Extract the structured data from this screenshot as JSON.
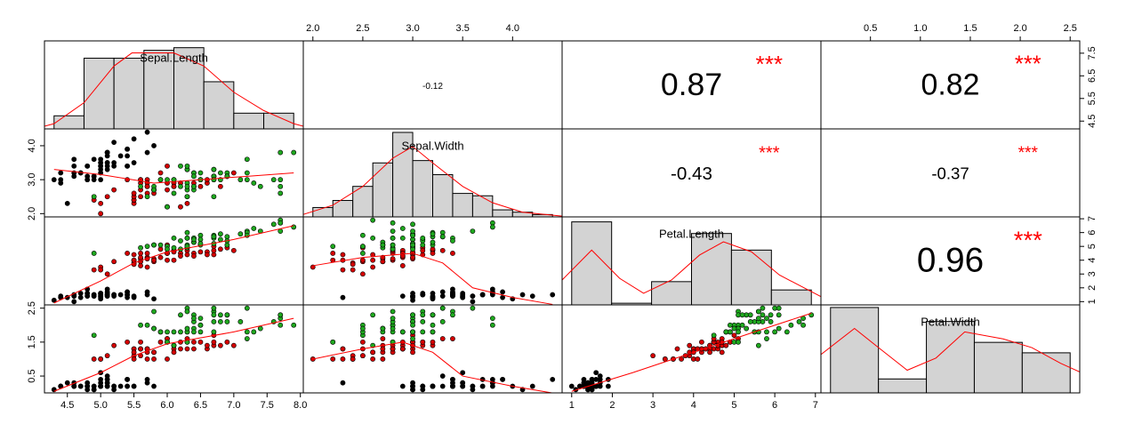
{
  "chart_data": {
    "type": "correlation-matrix",
    "variables": [
      "Sepal.Length",
      "Sepal.Width",
      "Petal.Length",
      "Petal.Width"
    ],
    "lims": [
      [
        4.156,
        8.044
      ],
      [
        1.904,
        4.496
      ],
      [
        0.764,
        7.136
      ],
      [
        0.004,
        2.596
      ]
    ],
    "xticks": [
      [
        4.5,
        {
          "value": 5,
          "label": "5.0"
        },
        5.5,
        {
          "value": 6,
          "label": "6.0"
        },
        6.5,
        {
          "value": 7,
          "label": "7.0"
        },
        7.5,
        {
          "value": 8,
          "label": "8.0"
        }
      ],
      [
        {
          "value": 2,
          "label": "2.0"
        },
        2.5,
        {
          "value": 3,
          "label": "3.0"
        },
        3.5,
        {
          "value": 4,
          "label": "4.0"
        }
      ],
      [
        1,
        2,
        3,
        4,
        5,
        6,
        7
      ],
      [
        0.5,
        {
          "value": 1,
          "label": "1.0"
        },
        1.5,
        {
          "value": 2,
          "label": "2.0"
        },
        2.5
      ]
    ],
    "yticks": [
      [
        4.5,
        5.5,
        6.5,
        7.5
      ],
      [
        {
          "value": 2,
          "label": "2.0"
        },
        {
          "value": 3,
          "label": "3.0"
        },
        {
          "value": 4,
          "label": "4.0"
        }
      ],
      [
        1,
        2,
        3,
        4,
        5,
        6,
        7
      ],
      [
        0.5,
        1.5,
        2.5
      ]
    ],
    "groups": [
      {
        "color": "#000000",
        "columns": [
          [
            5.1,
            4.9,
            4.7,
            4.6,
            5.0,
            5.4,
            4.6,
            5.0,
            4.4,
            4.9,
            5.4,
            4.8,
            4.8,
            4.3,
            5.8,
            5.7,
            5.4,
            5.1,
            5.7,
            5.1,
            5.4,
            5.1,
            4.6,
            5.1,
            4.8,
            5.0,
            5.0,
            5.2,
            5.2,
            4.7,
            4.8,
            5.4,
            5.2,
            5.5,
            4.9,
            5.0,
            5.5,
            4.9,
            4.4,
            5.1,
            5.0,
            4.5,
            4.4,
            5.0,
            5.1,
            4.8,
            5.1,
            4.6,
            5.3,
            5.0
          ],
          [
            3.5,
            3.0,
            3.2,
            3.1,
            3.6,
            3.9,
            3.4,
            3.4,
            2.9,
            3.1,
            3.7,
            3.4,
            3.0,
            3.0,
            4.0,
            4.4,
            3.9,
            3.5,
            3.8,
            3.8,
            3.4,
            3.7,
            3.6,
            3.3,
            3.4,
            3.0,
            3.4,
            3.5,
            3.4,
            3.2,
            3.1,
            3.4,
            4.1,
            4.2,
            3.1,
            3.2,
            3.5,
            3.6,
            3.0,
            3.4,
            3.5,
            2.3,
            3.2,
            3.5,
            3.8,
            3.0,
            3.8,
            3.2,
            3.7,
            3.3
          ],
          [
            1.4,
            1.4,
            1.3,
            1.5,
            1.4,
            1.7,
            1.4,
            1.5,
            1.4,
            1.5,
            1.5,
            1.6,
            1.4,
            1.1,
            1.2,
            1.5,
            1.3,
            1.4,
            1.7,
            1.5,
            1.7,
            1.5,
            1.0,
            1.7,
            1.9,
            1.6,
            1.6,
            1.5,
            1.4,
            1.6,
            1.6,
            1.5,
            1.5,
            1.4,
            1.5,
            1.2,
            1.3,
            1.4,
            1.3,
            1.5,
            1.3,
            1.3,
            1.3,
            1.6,
            1.9,
            1.4,
            1.6,
            1.4,
            1.5,
            1.4
          ],
          [
            0.2,
            0.2,
            0.2,
            0.2,
            0.2,
            0.4,
            0.3,
            0.2,
            0.2,
            0.1,
            0.2,
            0.2,
            0.1,
            0.1,
            0.2,
            0.4,
            0.4,
            0.3,
            0.3,
            0.3,
            0.2,
            0.4,
            0.2,
            0.5,
            0.2,
            0.2,
            0.4,
            0.2,
            0.2,
            0.2,
            0.2,
            0.4,
            0.1,
            0.2,
            0.2,
            0.2,
            0.2,
            0.1,
            0.2,
            0.2,
            0.3,
            0.3,
            0.2,
            0.6,
            0.4,
            0.3,
            0.2,
            0.2,
            0.2,
            0.2
          ]
        ]
      },
      {
        "color": "#d40000",
        "columns": [
          [
            7.0,
            6.4,
            6.9,
            5.5,
            6.5,
            5.7,
            6.3,
            4.9,
            6.6,
            5.2,
            5.0,
            5.9,
            6.0,
            6.1,
            5.6,
            6.7,
            5.6,
            5.8,
            6.2,
            5.6,
            5.9,
            6.1,
            6.3,
            6.1,
            6.4,
            6.6,
            6.8,
            6.7,
            6.0,
            5.7,
            5.5,
            5.5,
            5.8,
            6.0,
            5.4,
            6.0,
            6.7,
            6.3,
            5.6,
            5.5,
            5.5,
            6.1,
            5.8,
            5.0,
            5.6,
            5.7,
            5.7,
            6.2,
            5.1,
            5.7
          ],
          [
            3.2,
            3.2,
            3.1,
            2.3,
            2.8,
            2.8,
            3.3,
            2.4,
            2.9,
            2.7,
            2.0,
            3.0,
            2.2,
            2.9,
            2.9,
            3.1,
            3.0,
            2.7,
            2.2,
            2.5,
            3.2,
            2.8,
            2.5,
            2.8,
            2.9,
            3.0,
            2.8,
            3.0,
            2.9,
            2.6,
            2.4,
            2.4,
            2.7,
            2.7,
            3.0,
            3.4,
            3.1,
            2.3,
            3.0,
            2.5,
            2.6,
            3.0,
            2.6,
            2.3,
            2.7,
            3.0,
            2.9,
            2.9,
            2.5,
            2.8
          ],
          [
            4.7,
            4.5,
            4.9,
            4.0,
            4.6,
            4.5,
            4.7,
            3.3,
            4.6,
            3.9,
            3.5,
            4.2,
            4.0,
            4.7,
            3.6,
            4.4,
            4.5,
            4.1,
            4.5,
            3.9,
            4.8,
            4.0,
            4.9,
            4.7,
            4.3,
            4.4,
            4.8,
            5.0,
            4.5,
            3.5,
            3.8,
            3.7,
            3.9,
            5.1,
            4.5,
            4.5,
            4.7,
            4.4,
            4.1,
            4.0,
            4.4,
            4.6,
            4.0,
            3.3,
            4.2,
            4.2,
            4.2,
            4.3,
            3.0,
            4.1
          ],
          [
            1.4,
            1.5,
            1.5,
            1.3,
            1.5,
            1.3,
            1.6,
            1.0,
            1.3,
            1.4,
            1.0,
            1.5,
            1.0,
            1.4,
            1.3,
            1.4,
            1.5,
            1.0,
            1.5,
            1.1,
            1.8,
            1.3,
            1.5,
            1.2,
            1.3,
            1.4,
            1.4,
            1.7,
            1.5,
            1.0,
            1.1,
            1.0,
            1.2,
            1.6,
            1.5,
            1.6,
            1.5,
            1.3,
            1.3,
            1.3,
            1.2,
            1.4,
            1.2,
            1.0,
            1.3,
            1.2,
            1.3,
            1.3,
            1.1,
            1.3
          ]
        ]
      },
      {
        "color": "#1fa81f",
        "columns": [
          [
            6.3,
            5.8,
            7.1,
            6.3,
            6.5,
            7.6,
            4.9,
            7.3,
            6.7,
            7.2,
            6.5,
            6.4,
            6.8,
            5.7,
            5.8,
            6.4,
            6.5,
            7.7,
            7.7,
            6.0,
            6.9,
            5.6,
            7.7,
            6.3,
            6.7,
            7.2,
            6.2,
            6.1,
            6.4,
            7.2,
            7.4,
            7.9,
            6.4,
            6.3,
            6.1,
            7.7,
            6.3,
            6.4,
            6.0,
            6.9,
            6.7,
            6.9,
            5.8,
            6.8,
            6.7,
            6.7,
            6.3,
            6.5,
            6.2,
            5.9
          ],
          [
            3.3,
            2.7,
            3.0,
            2.9,
            3.0,
            3.0,
            2.5,
            2.9,
            2.5,
            3.6,
            3.2,
            2.7,
            3.0,
            2.5,
            2.8,
            3.2,
            3.0,
            3.8,
            2.6,
            2.2,
            3.2,
            2.8,
            2.8,
            2.7,
            3.3,
            3.2,
            2.8,
            3.0,
            2.8,
            3.0,
            2.8,
            3.8,
            2.8,
            2.8,
            2.6,
            3.0,
            3.4,
            3.1,
            3.0,
            3.1,
            3.1,
            3.1,
            2.7,
            3.2,
            3.3,
            3.0,
            2.5,
            3.0,
            3.4,
            3.0
          ],
          [
            6.0,
            5.1,
            5.9,
            5.6,
            5.8,
            6.6,
            4.5,
            6.3,
            5.8,
            6.1,
            5.1,
            5.3,
            5.5,
            5.0,
            5.1,
            5.3,
            5.5,
            6.7,
            6.9,
            5.0,
            5.7,
            4.9,
            6.7,
            4.9,
            5.7,
            6.0,
            4.8,
            4.9,
            5.6,
            5.8,
            6.1,
            6.4,
            5.6,
            5.1,
            5.6,
            6.1,
            5.6,
            5.5,
            4.8,
            5.4,
            5.6,
            5.1,
            5.1,
            5.9,
            5.7,
            5.2,
            5.0,
            5.2,
            5.4,
            5.1
          ],
          [
            2.5,
            1.9,
            2.1,
            1.8,
            2.2,
            2.1,
            1.7,
            1.8,
            1.8,
            2.5,
            2.0,
            1.9,
            2.1,
            2.0,
            2.4,
            2.3,
            1.8,
            2.2,
            2.3,
            1.5,
            2.3,
            2.0,
            2.0,
            1.8,
            2.1,
            1.8,
            1.8,
            1.8,
            2.1,
            1.6,
            1.9,
            2.0,
            2.2,
            1.5,
            1.4,
            2.3,
            2.4,
            1.8,
            1.8,
            2.1,
            2.4,
            2.3,
            1.9,
            2.3,
            2.5,
            2.3,
            1.9,
            2.0,
            2.3,
            1.8
          ]
        ]
      }
    ],
    "histograms": [
      {
        "bins": [
          4.0,
          4.5,
          5.0,
          5.5,
          6.0,
          6.5,
          7.0,
          7.5,
          8.0
        ],
        "counts": [
          5,
          27,
          27,
          30,
          31,
          18,
          6,
          6
        ],
        "xlim": [
          3.84,
          8.16
        ],
        "ylim": [
          0,
          33.6
        ],
        "color": "#d3d3d3",
        "density": {
          "x": [
            3.84,
            4.0,
            4.5,
            5.0,
            5.3,
            5.5,
            6.0,
            6.5,
            7.0,
            7.5,
            8.0,
            8.16
          ],
          "y": [
            1,
            2,
            10,
            24,
            29,
            29,
            29,
            24,
            14,
            7,
            2,
            1
          ]
        }
      },
      {
        "bins": [
          2.0,
          2.2,
          2.4,
          2.6,
          2.8,
          3.0,
          3.2,
          3.4,
          3.6,
          3.8,
          4.0,
          4.2,
          4.4
        ],
        "counts": [
          4,
          7,
          13,
          23,
          36,
          24,
          18,
          10,
          9,
          3,
          2,
          1
        ],
        "xlim": [
          1.904,
          4.496
        ],
        "ylim": [
          0,
          37.5
        ],
        "color": "#d3d3d3",
        "density": {
          "x": [
            1.9,
            2.2,
            2.5,
            2.8,
            3.0,
            3.2,
            3.5,
            3.8,
            4.1,
            4.5
          ],
          "y": [
            1,
            5,
            13,
            25,
            30,
            23,
            13,
            6,
            2,
            0.3
          ]
        }
      },
      {
        "bins": [
          1,
          2,
          3,
          4,
          5,
          6,
          7
        ],
        "counts": [
          50,
          1,
          14,
          43,
          33,
          9
        ],
        "xlim": [
          0.76,
          7.24
        ],
        "ylim": [
          0,
          53
        ],
        "color": "#d3d3d3",
        "density": {
          "x": [
            0.76,
            1.5,
            2.2,
            2.8,
            3.5,
            4.2,
            4.8,
            5.5,
            6.2,
            7.24
          ],
          "y": [
            15,
            33,
            16,
            7,
            15,
            30,
            38,
            32,
            18,
            5
          ]
        }
      },
      {
        "bins": [
          0,
          0.5,
          1.0,
          1.5,
          2.0,
          2.5
        ],
        "counts": [
          49,
          8,
          41,
          29,
          23
        ],
        "xlim": [
          -0.1,
          2.6
        ],
        "ylim": [
          0,
          50.5
        ],
        "color": "#d3d3d3",
        "density": {
          "x": [
            -0.1,
            0.25,
            0.5,
            0.8,
            1.1,
            1.4,
            1.8,
            2.1,
            2.4,
            2.6
          ],
          "y": [
            22,
            37,
            26,
            13,
            20,
            35,
            31,
            26,
            17,
            12
          ]
        }
      }
    ],
    "line_color": "#ff0000",
    "smooths": [
      {
        "x": [
          4.3,
          5.0,
          5.8,
          6.5,
          7.2,
          7.9
        ],
        "y": [
          3.3,
          3.15,
          2.9,
          3.0,
          3.1,
          3.2
        ]
      },
      {
        "x": [
          4.3,
          5.0,
          5.5,
          6.0,
          7.0,
          7.9
        ],
        "y": [
          0.9,
          2.5,
          3.8,
          4.6,
          5.5,
          6.5
        ]
      },
      {
        "x": [
          2.0,
          2.5,
          3.0,
          3.3,
          3.6,
          4.0,
          4.4
        ],
        "y": [
          3.6,
          4.2,
          4.5,
          3.8,
          2.0,
          1.3,
          0.8
        ]
      },
      {
        "x": [
          4.3,
          5.0,
          5.5,
          6.0,
          7.0,
          7.9
        ],
        "y": [
          0.05,
          0.6,
          1.1,
          1.45,
          1.8,
          2.2
        ]
      },
      {
        "x": [
          2.0,
          2.5,
          2.9,
          3.2,
          3.5,
          4.0,
          4.4
        ],
        "y": [
          1.0,
          1.3,
          1.5,
          1.2,
          0.5,
          0.2,
          0.0
        ]
      },
      {
        "x": [
          1.0,
          2.5,
          4.0,
          5.5,
          6.9
        ],
        "y": [
          0.05,
          0.6,
          1.2,
          1.8,
          2.35
        ]
      }
    ],
    "correlations": [
      -0.12,
      0.87,
      0.82,
      -0.43,
      -0.37,
      0.96
    ],
    "stars": [
      null,
      "***",
      "***",
      "***",
      "***",
      "***"
    ],
    "star_color": "#ff0000"
  }
}
